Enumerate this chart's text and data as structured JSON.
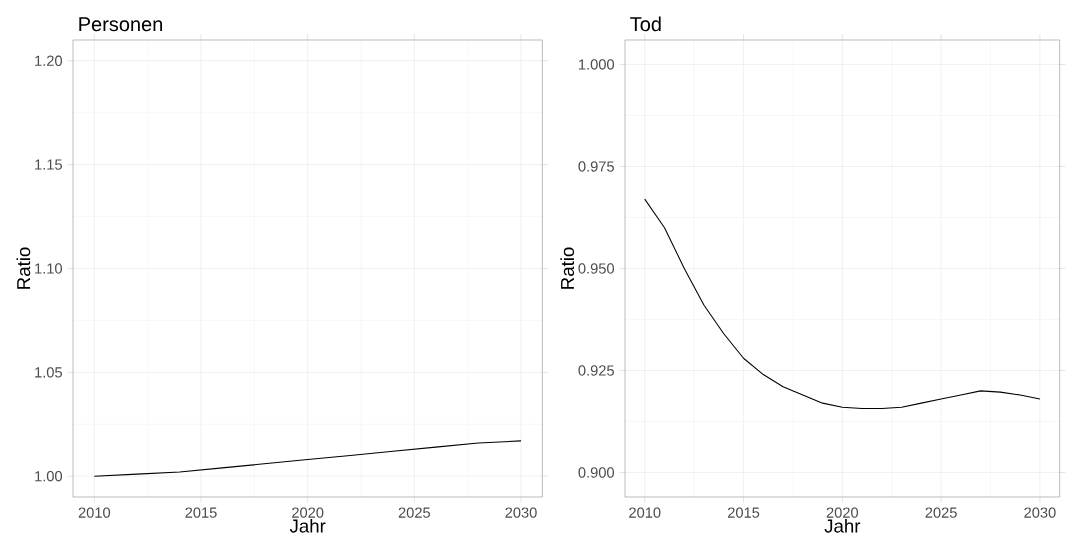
{
  "chart_data": [
    {
      "type": "line",
      "title": "Personen",
      "xlabel": "Jahr",
      "ylabel": "Ratio",
      "grid": true,
      "marker": "none",
      "line_style": "solid",
      "x": [
        2010,
        2012,
        2014,
        2016,
        2018,
        2020,
        2022,
        2024,
        2026,
        2028,
        2030
      ],
      "series": [
        {
          "color": "#000000",
          "values": [
            1.0,
            1.001,
            1.002,
            1.004,
            1.006,
            1.008,
            1.01,
            1.012,
            1.014,
            1.016,
            1.017
          ]
        }
      ],
      "xlim": [
        2009,
        2031
      ],
      "ylim": [
        0.99,
        1.21
      ],
      "xticks": [
        2010,
        2015,
        2020,
        2025,
        2030
      ],
      "yticks": [
        {
          "value": 1.0,
          "label": "1.00"
        },
        1.05,
        {
          "value": 1.1,
          "label": "1.10"
        },
        1.15,
        {
          "value": 1.2,
          "label": "1.20"
        }
      ]
    },
    {
      "type": "line",
      "title": "Tod",
      "xlabel": "Jahr",
      "ylabel": "Ratio",
      "grid": true,
      "marker": "none",
      "line_style": "solid",
      "x": [
        2010,
        2011,
        2012,
        2013,
        2014,
        2015,
        2016,
        2017,
        2018,
        2019,
        2020,
        2021,
        2022,
        2023,
        2024,
        2025,
        2026,
        2027,
        2028,
        2029,
        2030
      ],
      "series": [
        {
          "color": "#000000",
          "values": [
            0.967,
            0.96,
            0.95,
            0.941,
            0.934,
            0.928,
            0.924,
            0.921,
            0.919,
            0.917,
            0.916,
            0.9157,
            0.9157,
            0.916,
            0.917,
            0.918,
            0.919,
            0.92,
            0.9197,
            0.919,
            0.918
          ]
        }
      ],
      "xlim": [
        2009,
        2031
      ],
      "ylim": [
        0.894,
        1.006
      ],
      "xticks": [
        2010,
        2015,
        2020,
        2025,
        2030
      ],
      "yticks": [
        {
          "value": 0.9,
          "label": "0.900"
        },
        0.925,
        {
          "value": 0.95,
          "label": "0.950"
        },
        0.975,
        {
          "value": 1.0,
          "label": "1.000"
        }
      ]
    }
  ]
}
